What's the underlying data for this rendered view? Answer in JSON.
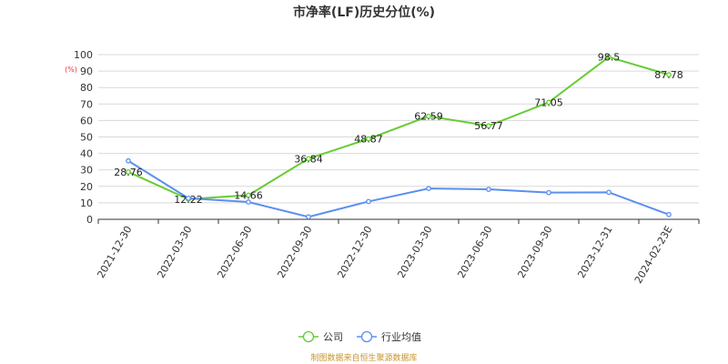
{
  "colors": {
    "company": "#66cc33",
    "industry": "#5b8ff0",
    "grid": "#d9d9d9",
    "axis": "#333333",
    "source_text": "#c8962d",
    "unit_text": "#e4393c"
  },
  "chart_data": {
    "type": "line",
    "title": "市净率(LF)历史分位(%)",
    "unit_label": "(%)",
    "categories": [
      "2021-12-30",
      "2022-03-30",
      "2022-06-30",
      "2022-09-30",
      "2022-12-30",
      "2023-03-30",
      "2023-06-30",
      "2023-09-30",
      "2023-12-31",
      "2024-02-23E"
    ],
    "ylim": [
      0,
      100
    ],
    "yticks": [
      0,
      10,
      20,
      30,
      40,
      50,
      60,
      70,
      80,
      90,
      100
    ],
    "grid": true,
    "legend_position": "bottom-center",
    "series": [
      {
        "name": "公司",
        "values": [
          28.76,
          12.22,
          14.66,
          36.84,
          48.87,
          62.59,
          56.77,
          71.05,
          98.5,
          87.78
        ],
        "labels": [
          "28.76",
          "12.22",
          "14.66",
          "36.84",
          "48.87",
          "62.59",
          "56.77",
          "71.05",
          "98.5",
          "87.78"
        ]
      },
      {
        "name": "行业均值",
        "values": [
          35.5,
          12.8,
          10.5,
          1.5,
          10.8,
          18.7,
          18.2,
          16.2,
          16.4,
          2.9
        ]
      }
    ]
  },
  "footer": {
    "source": "制图数据来自恒生聚源数据库"
  }
}
